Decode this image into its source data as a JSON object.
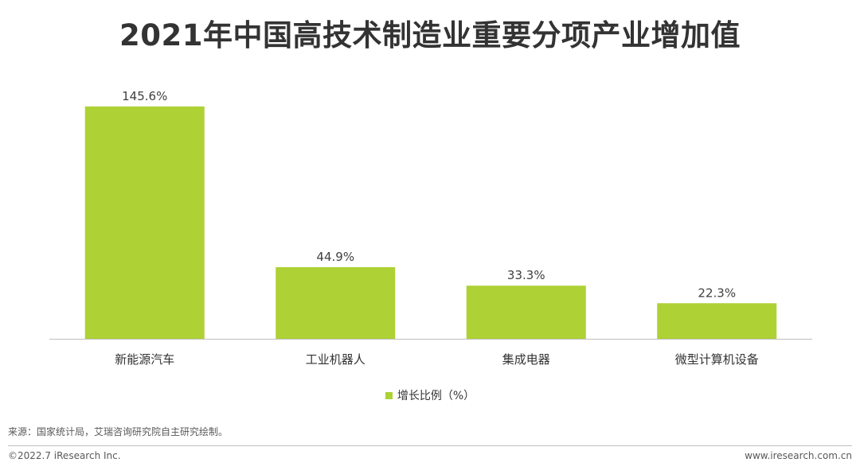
{
  "title": "2021年中国高技术制造业重要分项产业增加值",
  "colors": {
    "bar": "#AED135",
    "axis": "#bfbfbf"
  },
  "chart_data": {
    "type": "bar",
    "title": "2021年中国高技术制造业重要分项产业增加值",
    "categories": [
      "新能源汽车",
      "工业机器人",
      "集成电器",
      "微型计算机设备"
    ],
    "series": [
      {
        "name": "增长比例（%）",
        "values": [
          145.6,
          44.9,
          33.3,
          22.3
        ]
      }
    ],
    "value_labels": [
      "145.6%",
      "44.9%",
      "33.3%",
      "22.3%"
    ],
    "ylim": [
      0,
      150
    ],
    "grid": false,
    "legend": "bottom"
  },
  "legend_label": "增长比例（%）",
  "source": "来源：国家统计局，艾瑞咨询研究院自主研究绘制。",
  "copyright": "©2022.7 iResearch Inc.",
  "website": "www.iresearch.com.cn"
}
